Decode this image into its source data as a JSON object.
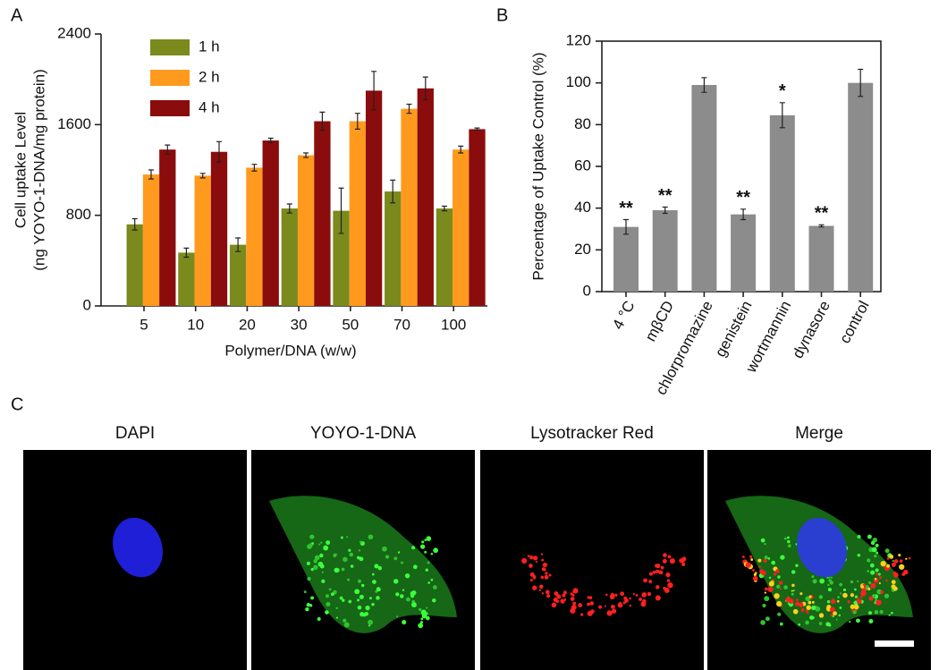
{
  "chart_data": [
    {
      "type": "bar",
      "panel_label": "A",
      "xlabel": "Polymer/DNA (w/w)",
      "ylabel": [
        "Cell uptake Level",
        "(ng YOYO-1-DNA/mg protein)"
      ],
      "categories": [
        "5",
        "10",
        "20",
        "30",
        "50",
        "70",
        "100"
      ],
      "series": [
        {
          "name": "1 h",
          "color": "#7b8a1d",
          "values": [
            720,
            470,
            540,
            860,
            840,
            1010,
            860
          ],
          "errors": [
            50,
            40,
            60,
            40,
            200,
            100,
            20
          ]
        },
        {
          "name": "2 h",
          "color": "#ff9a1f",
          "values": [
            1160,
            1150,
            1220,
            1330,
            1630,
            1740,
            1380
          ],
          "errors": [
            40,
            20,
            30,
            20,
            70,
            40,
            30
          ]
        },
        {
          "name": "4 h",
          "color": "#8b0c0c",
          "values": [
            1380,
            1360,
            1460,
            1630,
            1900,
            1920,
            1560
          ],
          "errors": [
            40,
            90,
            20,
            80,
            170,
            100,
            10
          ]
        }
      ],
      "ylim": [
        0,
        2400
      ],
      "yticks": [
        0,
        800,
        1600,
        2400
      ],
      "legend": "upper left"
    },
    {
      "type": "bar",
      "panel_label": "B",
      "ylabel": "Percentage of Uptake Control (%)",
      "categories": [
        "4 °C",
        "mβCD",
        "chlorpromazine",
        "genistein",
        "wortmannin",
        "dynasore",
        "control"
      ],
      "values": [
        31,
        39,
        99,
        37,
        84.5,
        31.5,
        100
      ],
      "errors": [
        3.5,
        1.5,
        3.5,
        2.5,
        6,
        0.5,
        6.5
      ],
      "annotations": [
        "**",
        "**",
        null,
        "**",
        "*",
        "**",
        null
      ],
      "color": "#8c8c8c",
      "ylim": [
        0,
        120
      ],
      "yticks": [
        0,
        20,
        40,
        60,
        80,
        100,
        120
      ]
    }
  ],
  "panel_c": {
    "label": "C",
    "images": [
      "DAPI",
      "YOYO-1-DNA",
      "Lysotracker Red",
      "Merge"
    ]
  }
}
